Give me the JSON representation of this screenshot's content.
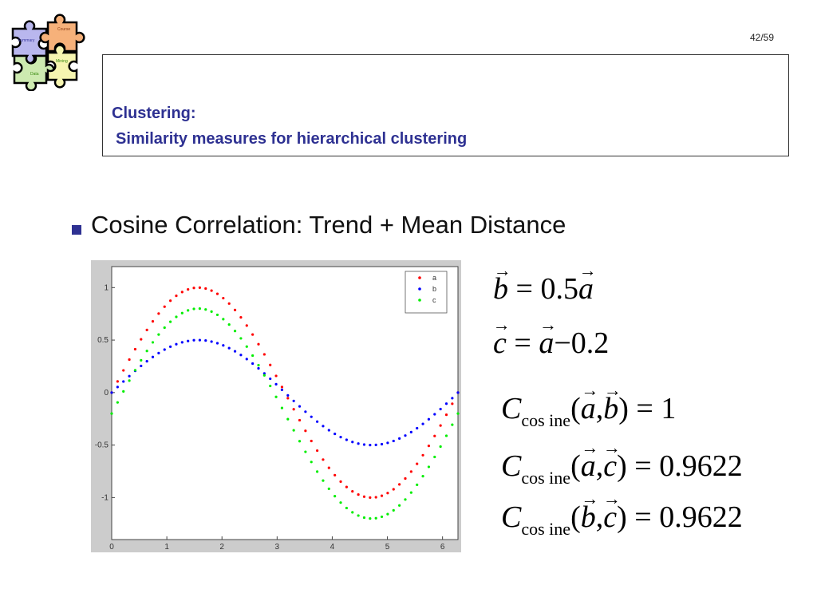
{
  "slide": {
    "page_number": "42/59",
    "title_line1": "Clustering:",
    "title_line2": "Similarity measures for hierarchical clustering",
    "bullet": "Cosine Correlation: Trend + Mean Distance",
    "logo_pieces": [
      "Course",
      "Summary",
      "Mining",
      "Data"
    ]
  },
  "equations": {
    "eq1": {
      "lhs": "b",
      "rhs_coef": "0.5",
      "rhs_var": "a"
    },
    "eq2": {
      "lhs": "c",
      "rhs_var": "a",
      "rhs_op": "−",
      "rhs_const": "0.2"
    },
    "eq3": {
      "fn": "C",
      "sub": "cos ine",
      "args": [
        "a",
        "b"
      ],
      "result": "1"
    },
    "eq4": {
      "fn": "C",
      "sub": "cos ine",
      "args": [
        "a",
        "c"
      ],
      "result": "0.9622"
    },
    "eq5": {
      "fn": "C",
      "sub": "cos ine",
      "args": [
        "b",
        "c"
      ],
      "result": "0.9622"
    }
  },
  "chart_data": {
    "type": "scatter",
    "x_range": [
      0,
      6.2832
    ],
    "points_per_series": 60,
    "xlim": [
      0,
      6.28
    ],
    "ylim": [
      -1.4,
      1.2
    ],
    "x_ticks": [
      "0",
      "1",
      "2",
      "3",
      "4",
      "5",
      "6"
    ],
    "y_ticks": [
      "1",
      "0.5",
      "0",
      "-0.5",
      "-1"
    ],
    "x_tick_values": [
      0,
      1,
      2,
      3,
      4,
      5,
      6
    ],
    "y_tick_values": [
      1,
      0.5,
      0,
      -0.5,
      -1
    ],
    "series": [
      {
        "name": "a",
        "formula": "sin(x)",
        "scale": 1.0,
        "offset": 0.0,
        "color": "#ff0000"
      },
      {
        "name": "b",
        "formula": "0.5*sin(x)",
        "scale": 0.5,
        "offset": 0.0,
        "color": "#0000ff"
      },
      {
        "name": "c",
        "formula": "sin(x)-0.2",
        "scale": 1.0,
        "offset": -0.2,
        "color": "#00ee00"
      }
    ],
    "legend_position": "top-right",
    "grid": false,
    "background_color": "#cccccc",
    "plot_color": "#ffffff"
  },
  "colors": {
    "title": "#2e3192",
    "bullet": "#2e3192"
  }
}
